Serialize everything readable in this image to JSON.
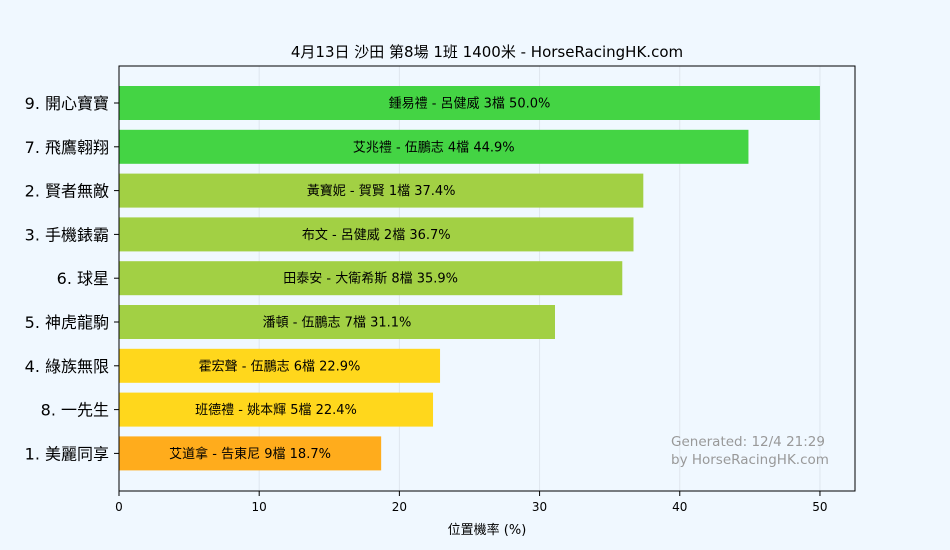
{
  "chart_data": {
    "type": "bar",
    "orientation": "horizontal",
    "title": "4月13日  沙田  第8場  1班  1400米 - HorseRacingHK.com",
    "xlabel": "位置機率 (%)",
    "xlim": [
      0,
      52.5
    ],
    "xticks": [
      0,
      10,
      20,
      30,
      40,
      50
    ],
    "grid": true,
    "categories": [
      "9. 開心寶寶",
      "7. 飛鷹翱翔",
      "2. 賢者無敵",
      "3. 手機錶霸",
      "6. 球星",
      "5. 神虎龍駒",
      "4. 綠族無限",
      "8. 一先生",
      "1. 美麗同享"
    ],
    "values": [
      50.0,
      44.9,
      37.4,
      36.7,
      35.9,
      31.1,
      22.9,
      22.4,
      18.7
    ],
    "bar_labels": [
      "鍾易禮 - 呂健威 3檔  50.0%",
      "艾兆禮 - 伍鵬志 4檔  44.9%",
      "黃寶妮 - 賀賢 1檔  37.4%",
      "布文 - 呂健威 2檔  36.7%",
      "田泰安 - 大衛希斯 8檔  35.9%",
      "潘頓 - 伍鵬志 7檔  31.1%",
      "霍宏聲 - 伍鵬志 6檔  22.9%",
      "班德禮 - 姚本輝 5檔  22.4%",
      "艾道拿 - 告東尼 9檔  18.7%"
    ],
    "colors": [
      "#44d444",
      "#44d444",
      "#a2d044",
      "#a2d044",
      "#a2d044",
      "#a2d044",
      "#ffd71c",
      "#ffd71c",
      "#ffac1c"
    ]
  },
  "watermark": {
    "line1": "Generated: 12/4 21:29",
    "line2": "by HorseRacingHK.com"
  }
}
